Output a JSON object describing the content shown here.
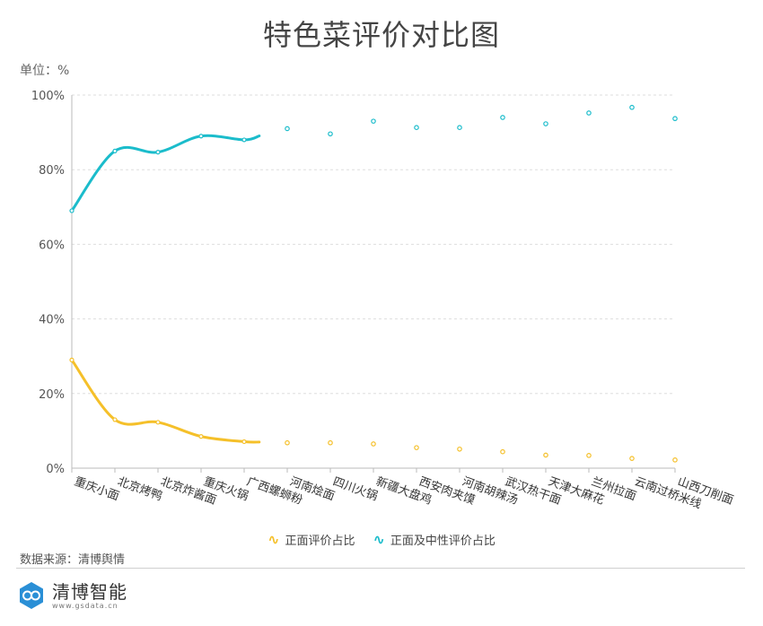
{
  "chart_data": {
    "type": "line",
    "title": "特色菜评价对比图",
    "unit_label": "单位：%",
    "categories": [
      "重庆小面",
      "北京烤鸭",
      "北京炸酱面",
      "重庆火锅",
      "广西螺蛳粉",
      "河南烩面",
      "四川火锅",
      "新疆大盘鸡",
      "西安肉夹馍",
      "河南胡辣汤",
      "武汉热干面",
      "天津大麻花",
      "兰州拉面",
      "云南过桥米线",
      "山西刀削面"
    ],
    "series": [
      {
        "name": "正面评价占比",
        "color": "#f5c02a",
        "values": [
          29,
          13,
          12.3,
          8.5,
          7.1,
          6.8,
          6.8,
          6.5,
          5.5,
          5.1,
          4.4,
          3.5,
          3.4,
          2.6,
          2.2
        ]
      },
      {
        "name": "正面及中性评价占比",
        "color": "#1bbccb",
        "values": [
          69,
          85,
          84.7,
          89,
          88,
          91,
          89.6,
          93,
          91.3,
          91.3,
          94,
          92.3,
          95.2,
          96.7,
          93.7
        ]
      }
    ],
    "solid_count": 5,
    "ylim": [
      0,
      100
    ],
    "yticks": [
      "0%",
      "20%",
      "40%",
      "60%",
      "80%",
      "100%"
    ],
    "grid": true,
    "legend_position": "bottom"
  },
  "footer": {
    "source": "数据来源：清博舆情",
    "brand_name": "清博智能",
    "brand_url": "www.gsdata.cn"
  }
}
